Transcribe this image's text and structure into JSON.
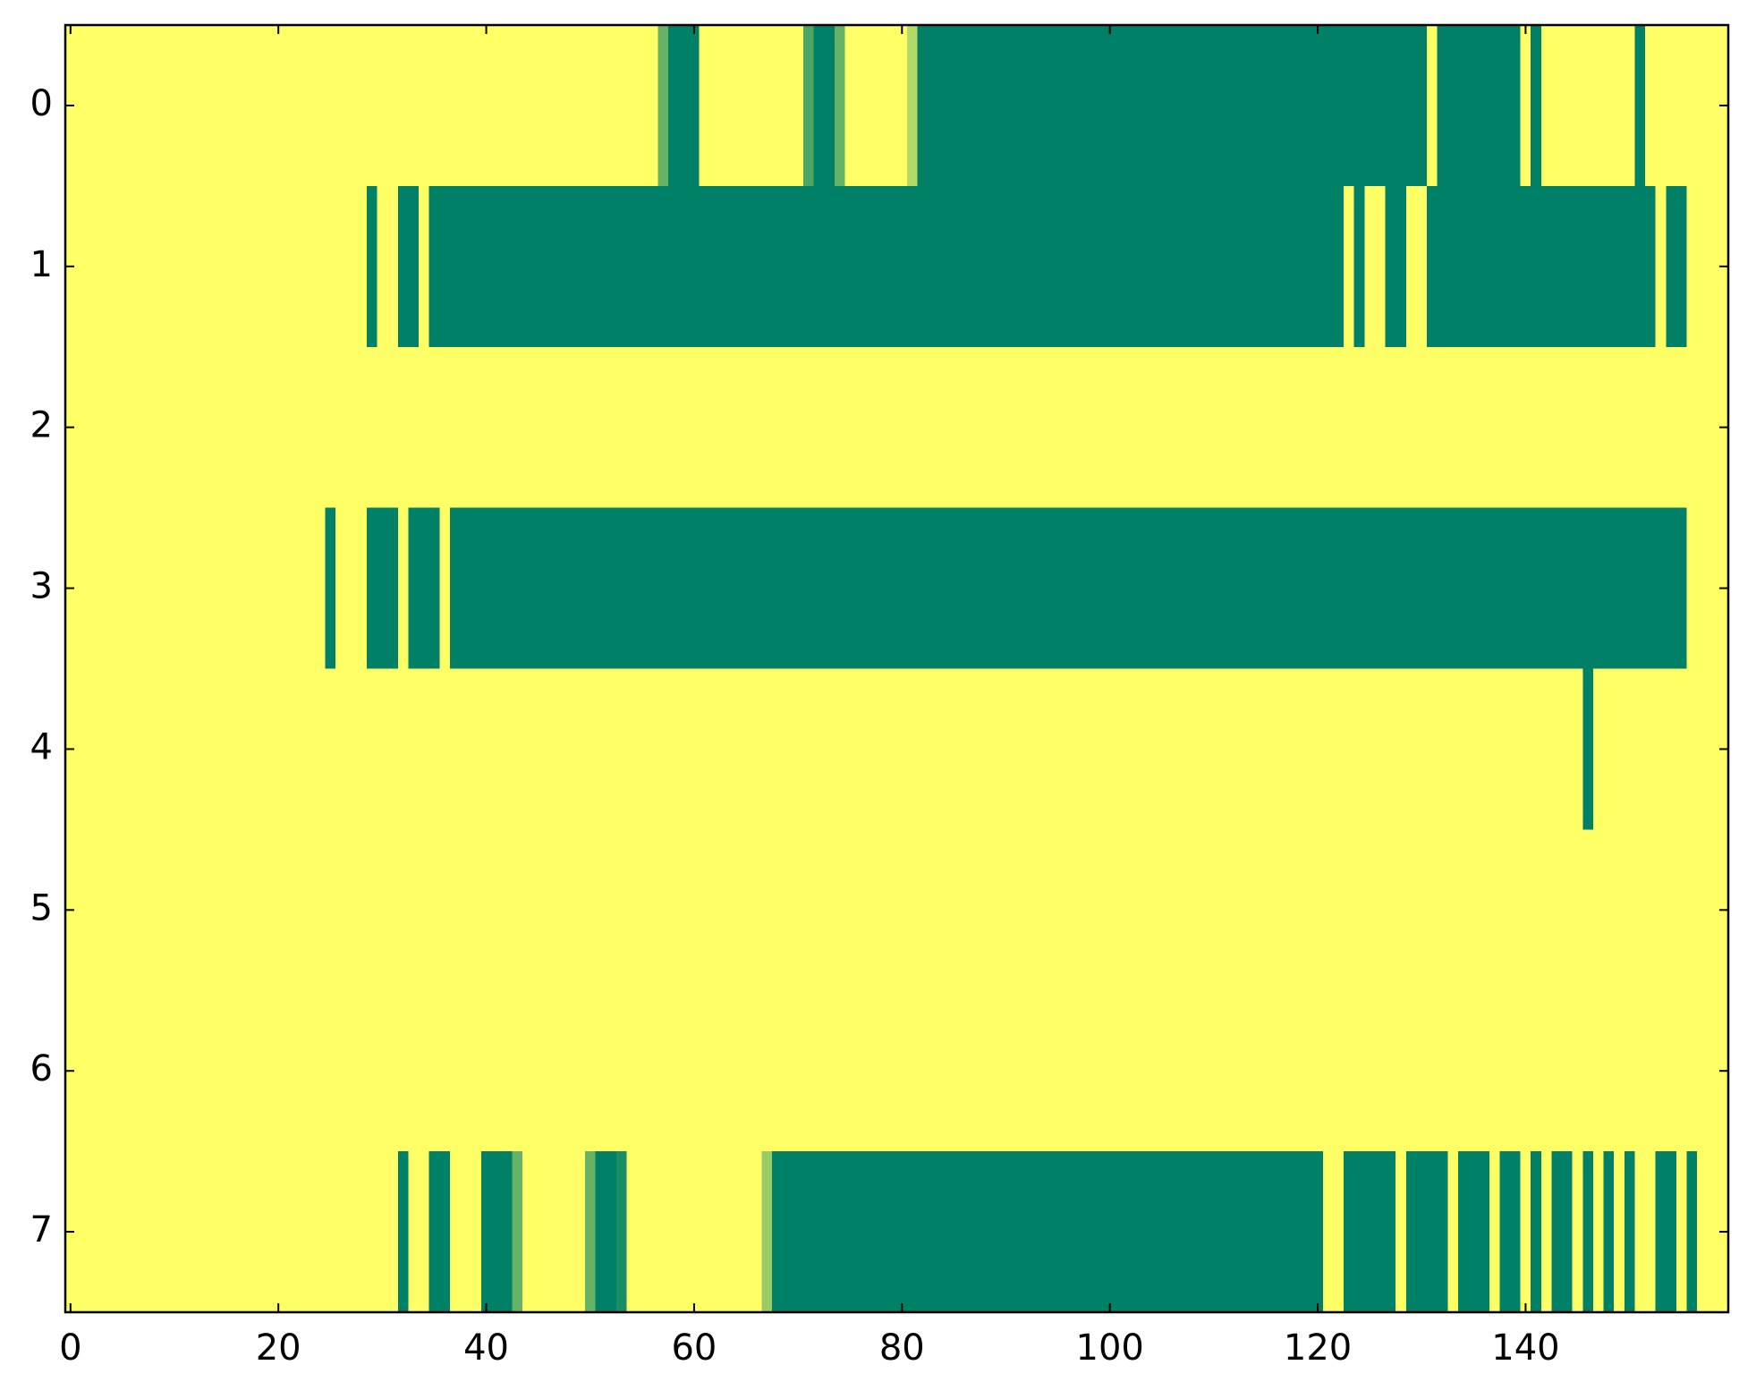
{
  "chart_data": {
    "type": "heatmap",
    "color_low": "#ffff66",
    "color_high": "#008066",
    "xlim": [
      -0.5,
      159.5
    ],
    "ylim": [
      7.5,
      -0.5
    ],
    "xticks": [
      0,
      20,
      40,
      60,
      80,
      100,
      120,
      140
    ],
    "yticks": [
      0,
      1,
      2,
      3,
      4,
      5,
      6,
      7
    ],
    "z": [
      [
        0,
        0,
        0,
        0,
        0,
        0,
        0,
        0,
        0,
        0,
        0,
        0,
        0,
        0,
        0,
        0,
        0,
        0,
        0,
        0,
        0,
        0,
        0,
        0,
        0,
        0,
        0,
        0,
        0,
        0,
        0,
        0,
        0,
        0,
        0,
        0,
        0,
        0,
        0,
        0,
        0,
        0,
        0,
        0,
        0,
        0,
        0,
        0,
        0,
        0,
        0,
        0,
        0,
        0,
        0,
        0,
        0,
        0.6,
        1,
        1,
        1,
        0,
        0,
        0,
        0,
        0,
        0,
        0,
        0,
        0,
        0,
        0.7,
        1,
        1,
        0.6,
        0,
        0,
        0,
        0,
        0,
        0,
        0.3,
        1,
        1,
        1,
        1,
        1,
        1,
        1,
        1,
        1,
        1,
        1,
        1,
        1,
        1,
        1,
        1,
        1,
        1,
        1,
        1,
        1,
        1,
        1,
        1,
        1,
        1,
        1,
        1,
        1,
        1,
        1,
        1,
        1,
        1,
        1,
        1,
        1,
        1,
        1,
        1,
        1,
        1,
        1,
        1,
        1,
        1,
        1,
        1,
        1,
        0,
        1,
        1,
        1,
        1,
        1,
        1,
        1,
        1,
        0,
        1,
        0,
        0,
        0,
        0,
        0,
        0,
        0,
        0,
        0,
        1,
        0,
        0,
        0,
        0,
        0,
        0,
        0,
        0
      ],
      [
        0,
        0,
        0,
        0,
        0,
        0,
        0,
        0,
        0,
        0,
        0,
        0,
        0,
        0,
        0,
        0,
        0,
        0,
        0,
        0,
        0,
        0,
        0,
        0,
        0,
        0,
        0,
        0,
        0,
        1,
        0,
        0,
        1,
        1,
        0,
        1,
        1,
        1,
        1,
        1,
        1,
        1,
        1,
        1,
        1,
        1,
        1,
        1,
        1,
        1,
        1,
        1,
        1,
        1,
        1,
        1,
        1,
        1,
        1,
        1,
        1,
        1,
        1,
        1,
        1,
        1,
        1,
        1,
        1,
        1,
        1,
        1,
        1,
        1,
        1,
        1,
        1,
        1,
        1,
        1,
        1,
        1,
        1,
        1,
        1,
        1,
        1,
        1,
        1,
        1,
        1,
        1,
        1,
        1,
        1,
        1,
        1,
        1,
        1,
        1,
        1,
        1,
        1,
        1,
        1,
        1,
        1,
        1,
        1,
        1,
        1,
        1,
        1,
        1,
        1,
        1,
        1,
        1,
        1,
        1,
        1,
        1,
        1,
        0,
        1,
        0,
        0,
        1,
        1,
        0,
        0,
        1,
        1,
        1,
        1,
        1,
        1,
        1,
        1,
        1,
        1,
        1,
        1,
        1,
        1,
        1,
        1,
        1,
        1,
        1,
        1,
        1,
        1,
        0,
        1,
        1,
        0,
        0,
        0,
        0
      ],
      [
        0,
        0,
        0,
        0,
        0,
        0,
        0,
        0,
        0,
        0,
        0,
        0,
        0,
        0,
        0,
        0,
        0,
        0,
        0,
        0,
        0,
        0,
        0,
        0,
        0,
        0,
        0,
        0,
        0,
        0,
        0,
        0,
        0,
        0,
        0,
        0,
        0,
        0,
        0,
        0,
        0,
        0,
        0,
        0,
        0,
        0,
        0,
        0,
        0,
        0,
        0,
        0,
        0,
        0,
        0,
        0,
        0,
        0,
        0,
        0,
        0,
        0,
        0,
        0,
        0,
        0,
        0,
        0,
        0,
        0,
        0,
        0,
        0,
        0,
        0,
        0,
        0,
        0,
        0,
        0,
        0,
        0,
        0,
        0,
        0,
        0,
        0,
        0,
        0,
        0,
        0,
        0,
        0,
        0,
        0,
        0,
        0,
        0,
        0,
        0,
        0,
        0,
        0,
        0,
        0,
        0,
        0,
        0,
        0,
        0,
        0,
        0,
        0,
        0,
        0,
        0,
        0,
        0,
        0,
        0,
        0,
        0,
        0,
        0,
        0,
        0,
        0,
        0,
        0,
        0,
        0,
        0,
        0,
        0,
        0,
        0,
        0,
        0,
        0,
        0,
        0,
        0,
        0,
        0,
        0,
        0,
        0,
        0,
        0,
        0,
        0,
        0,
        0,
        0,
        0,
        0,
        0,
        0,
        0,
        0
      ],
      [
        0,
        0,
        0,
        0,
        0,
        0,
        0,
        0,
        0,
        0,
        0,
        0,
        0,
        0,
        0,
        0,
        0,
        0,
        0,
        0,
        0,
        0,
        0,
        0,
        0,
        1,
        0,
        0,
        0,
        1,
        1,
        1,
        0,
        1,
        1,
        1,
        0,
        1,
        1,
        1,
        1,
        1,
        1,
        1,
        1,
        1,
        1,
        1,
        1,
        1,
        1,
        1,
        1,
        1,
        1,
        1,
        1,
        1,
        1,
        1,
        1,
        1,
        1,
        1,
        1,
        1,
        1,
        1,
        1,
        1,
        1,
        1,
        1,
        1,
        1,
        1,
        1,
        1,
        1,
        1,
        1,
        1,
        1,
        1,
        1,
        1,
        1,
        1,
        1,
        1,
        1,
        1,
        1,
        1,
        1,
        1,
        1,
        1,
        1,
        1,
        1,
        1,
        1,
        1,
        1,
        1,
        1,
        1,
        1,
        1,
        1,
        1,
        1,
        1,
        1,
        1,
        1,
        1,
        1,
        1,
        1,
        1,
        1,
        1,
        1,
        1,
        1,
        1,
        1,
        1,
        1,
        1,
        1,
        1,
        1,
        1,
        1,
        1,
        1,
        1,
        1,
        1,
        1,
        1,
        1,
        1,
        1,
        1,
        1,
        1,
        1,
        1,
        1,
        1,
        1,
        1,
        0,
        0,
        0,
        0
      ],
      [
        0,
        0,
        0,
        0,
        0,
        0,
        0,
        0,
        0,
        0,
        0,
        0,
        0,
        0,
        0,
        0,
        0,
        0,
        0,
        0,
        0,
        0,
        0,
        0,
        0,
        0,
        0,
        0,
        0,
        0,
        0,
        0,
        0,
        0,
        0,
        0,
        0,
        0,
        0,
        0,
        0,
        0,
        0,
        0,
        0,
        0,
        0,
        0,
        0,
        0,
        0,
        0,
        0,
        0,
        0,
        0,
        0,
        0,
        0,
        0,
        0,
        0,
        0,
        0,
        0,
        0,
        0,
        0,
        0,
        0,
        0,
        0,
        0,
        0,
        0,
        0,
        0,
        0,
        0,
        0,
        0,
        0,
        0,
        0,
        0,
        0,
        0,
        0,
        0,
        0,
        0,
        0,
        0,
        0,
        0,
        0,
        0,
        0,
        0,
        0,
        0,
        0,
        0,
        0,
        0,
        0,
        0,
        0,
        0,
        0,
        0,
        0,
        0,
        0,
        0,
        0,
        0,
        0,
        0,
        0,
        0,
        0,
        0,
        0,
        0,
        0,
        0,
        0,
        0,
        0,
        0,
        0,
        0,
        0,
        0,
        0,
        0,
        0,
        0,
        0,
        0,
        0,
        0,
        0,
        0,
        0,
        1,
        0,
        0,
        0,
        0,
        0,
        0,
        0,
        0,
        0,
        0,
        0,
        0,
        0
      ],
      [
        0,
        0,
        0,
        0,
        0,
        0,
        0,
        0,
        0,
        0,
        0,
        0,
        0,
        0,
        0,
        0,
        0,
        0,
        0,
        0,
        0,
        0,
        0,
        0,
        0,
        0,
        0,
        0,
        0,
        0,
        0,
        0,
        0,
        0,
        0,
        0,
        0,
        0,
        0,
        0,
        0,
        0,
        0,
        0,
        0,
        0,
        0,
        0,
        0,
        0,
        0,
        0,
        0,
        0,
        0,
        0,
        0,
        0,
        0,
        0,
        0,
        0,
        0,
        0,
        0,
        0,
        0,
        0,
        0,
        0,
        0,
        0,
        0,
        0,
        0,
        0,
        0,
        0,
        0,
        0,
        0,
        0,
        0,
        0,
        0,
        0,
        0,
        0,
        0,
        0,
        0,
        0,
        0,
        0,
        0,
        0,
        0,
        0,
        0,
        0,
        0,
        0,
        0,
        0,
        0,
        0,
        0,
        0,
        0,
        0,
        0,
        0,
        0,
        0,
        0,
        0,
        0,
        0,
        0,
        0,
        0,
        0,
        0,
        0,
        0,
        0,
        0,
        0,
        0,
        0,
        0,
        0,
        0,
        0,
        0,
        0,
        0,
        0,
        0,
        0,
        0,
        0,
        0,
        0,
        0,
        0,
        0,
        0,
        0,
        0,
        0,
        0,
        0,
        0,
        0,
        0,
        0,
        0,
        0,
        0
      ],
      [
        0,
        0,
        0,
        0,
        0,
        0,
        0,
        0,
        0,
        0,
        0,
        0,
        0,
        0,
        0,
        0,
        0,
        0,
        0,
        0,
        0,
        0,
        0,
        0,
        0,
        0,
        0,
        0,
        0,
        0,
        0,
        0,
        0,
        0,
        0,
        0,
        0,
        0,
        0,
        0,
        0,
        0,
        0,
        0,
        0,
        0,
        0,
        0,
        0,
        0,
        0,
        0,
        0,
        0,
        0,
        0,
        0,
        0,
        0,
        0,
        0,
        0,
        0,
        0,
        0,
        0,
        0,
        0,
        0,
        0,
        0,
        0,
        0,
        0,
        0,
        0,
        0,
        0,
        0,
        0,
        0,
        0,
        0,
        0,
        0,
        0,
        0,
        0,
        0,
        0,
        0,
        0,
        0,
        0,
        0,
        0,
        0,
        0,
        0,
        0,
        0,
        0,
        0,
        0,
        0,
        0,
        0,
        0,
        0,
        0,
        0,
        0,
        0,
        0,
        0,
        0,
        0,
        0,
        0,
        0,
        0,
        0,
        0,
        0,
        0,
        0,
        0,
        0,
        0,
        0,
        0,
        0,
        0,
        0,
        0,
        0,
        0,
        0,
        0,
        0,
        0,
        0,
        0,
        0,
        0,
        0,
        0,
        0,
        0,
        0,
        0,
        0,
        0,
        0,
        0,
        0,
        0,
        0,
        0,
        0
      ],
      [
        0,
        0,
        0,
        0,
        0,
        0,
        0,
        0,
        0,
        0,
        0,
        0,
        0,
        0,
        0,
        0,
        0,
        0,
        0,
        0,
        0,
        0,
        0,
        0,
        0,
        0,
        0,
        0,
        0,
        0,
        0,
        0,
        1,
        0,
        0,
        1,
        1,
        0,
        0,
        0,
        1,
        1,
        1,
        0.6,
        0,
        0,
        0,
        0,
        0,
        0,
        0.6,
        1,
        1,
        0.9,
        0,
        0,
        0,
        0,
        0,
        0,
        0,
        0,
        0,
        0,
        0,
        0,
        0,
        0.4,
        1,
        1,
        1,
        1,
        1,
        1,
        1,
        1,
        1,
        1,
        1,
        1,
        1,
        1,
        1,
        1,
        1,
        1,
        1,
        1,
        1,
        1,
        1,
        1,
        1,
        1,
        1,
        1,
        1,
        1,
        1,
        1,
        1,
        1,
        1,
        1,
        1,
        1,
        1,
        1,
        1,
        1,
        1,
        1,
        1,
        1,
        1,
        1,
        1,
        1,
        1,
        1,
        1,
        0,
        0,
        1,
        1,
        1,
        1,
        1,
        0,
        1,
        1,
        1,
        1,
        0,
        1,
        1,
        1,
        0,
        1,
        1,
        0,
        1,
        0,
        1,
        1,
        0,
        1,
        0,
        1,
        0,
        1,
        0,
        0,
        1,
        1,
        0,
        1,
        0,
        0,
        0
      ]
    ]
  }
}
